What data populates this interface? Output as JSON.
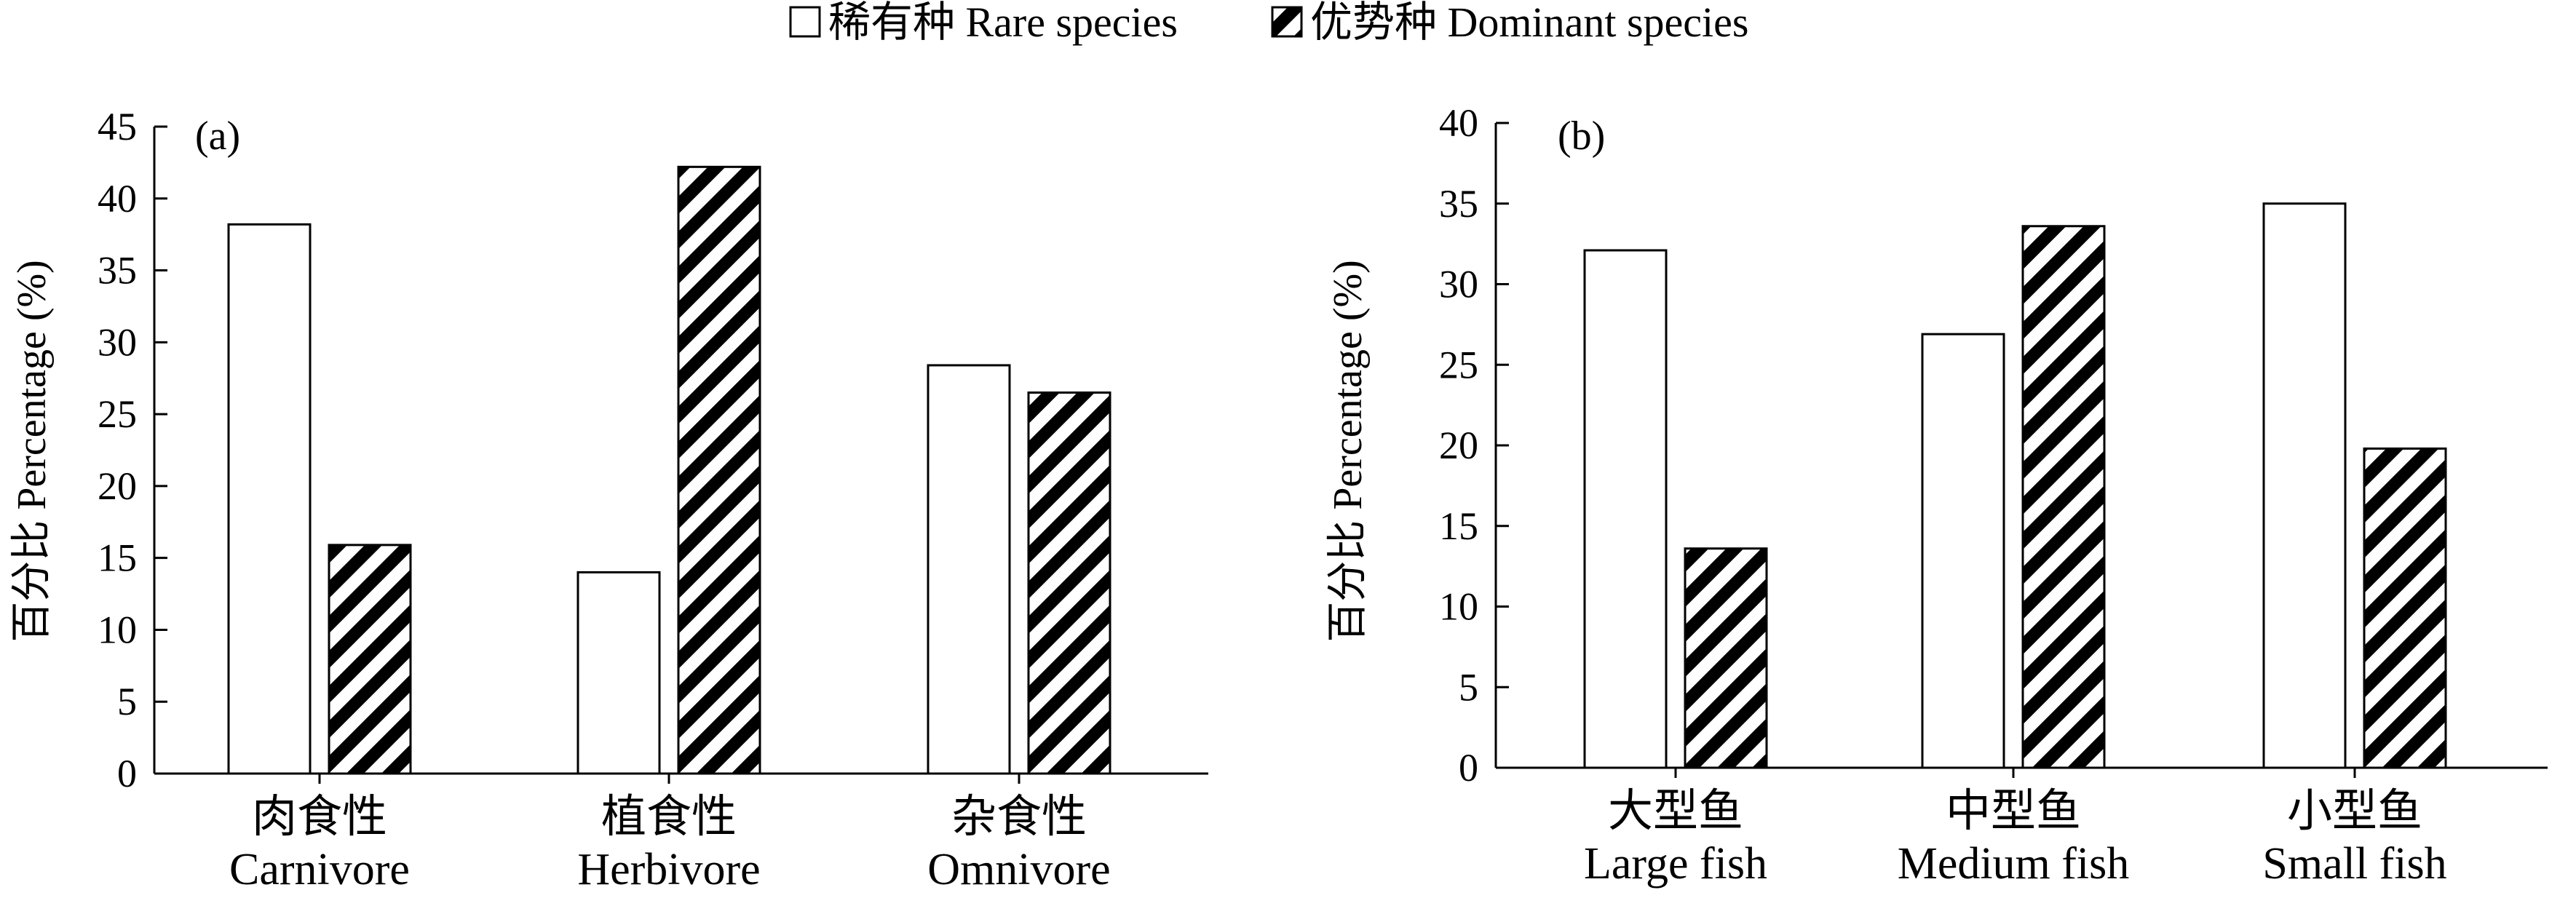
{
  "legend": {
    "position": "top-center",
    "items": [
      {
        "label": "稀有种 Rare species",
        "pattern": "white"
      },
      {
        "label": "优势种 Dominant species",
        "pattern": "diagonal-stripes"
      }
    ]
  },
  "colors": {
    "bar_stroke": "#000000",
    "rare_fill": "#ffffff",
    "dominant_stripe": "#000000"
  },
  "chart_data": [
    {
      "type": "bar",
      "panel_label": "(a)",
      "ylabel": "百分比 Percentage (%)",
      "ylim": [
        0,
        45
      ],
      "yticks": [
        0,
        5,
        10,
        15,
        20,
        25,
        30,
        35,
        40,
        45
      ],
      "categories": [
        {
          "cn": "肉食性",
          "en": "Carnivore"
        },
        {
          "cn": "植食性",
          "en": "Herbivore"
        },
        {
          "cn": "杂食性",
          "en": "Omnivore"
        }
      ],
      "series": [
        {
          "name": "稀有种 Rare species",
          "values": [
            38.2,
            14.0,
            28.4
          ]
        },
        {
          "name": "优势种 Dominant species",
          "values": [
            15.9,
            42.2,
            26.5
          ]
        }
      ],
      "grid": false
    },
    {
      "type": "bar",
      "panel_label": "(b)",
      "ylabel": "百分比 Percentage (%)",
      "ylim": [
        0,
        40
      ],
      "yticks": [
        0,
        5,
        10,
        15,
        20,
        25,
        30,
        35,
        40
      ],
      "categories": [
        {
          "cn": "大型鱼",
          "en": "Large fish"
        },
        {
          "cn": "中型鱼",
          "en": "Medium fish"
        },
        {
          "cn": "小型鱼",
          "en": "Small fish"
        }
      ],
      "series": [
        {
          "name": "稀有种 Rare species",
          "values": [
            32.1,
            26.9,
            35.0
          ]
        },
        {
          "name": "优势种 Dominant species",
          "values": [
            13.6,
            33.6,
            19.8
          ]
        }
      ],
      "grid": false
    }
  ]
}
